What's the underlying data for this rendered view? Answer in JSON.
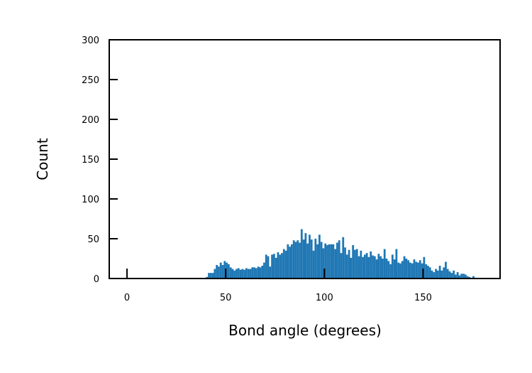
{
  "chart_data": {
    "type": "histogram",
    "xlabel": "Bond angle (degrees)",
    "ylabel": "Count",
    "xlim": [
      -9,
      189
    ],
    "ylim": [
      0,
      300
    ],
    "xticks": [
      0,
      50,
      100,
      150
    ],
    "yticks": [
      0,
      50,
      100,
      150,
      200,
      250,
      300
    ],
    "bin_width": 1,
    "bar_color": "#1f77b4",
    "grid": false,
    "bins": [
      [
        40,
        2
      ],
      [
        41,
        7
      ],
      [
        42,
        7
      ],
      [
        43,
        7
      ],
      [
        44,
        12
      ],
      [
        45,
        17
      ],
      [
        46,
        15
      ],
      [
        47,
        20
      ],
      [
        48,
        17
      ],
      [
        49,
        22
      ],
      [
        50,
        20
      ],
      [
        51,
        18
      ],
      [
        52,
        14
      ],
      [
        53,
        12
      ],
      [
        54,
        10
      ],
      [
        55,
        12
      ],
      [
        56,
        13
      ],
      [
        57,
        11
      ],
      [
        58,
        12
      ],
      [
        59,
        11
      ],
      [
        60,
        13
      ],
      [
        61,
        12
      ],
      [
        62,
        12
      ],
      [
        63,
        14
      ],
      [
        64,
        14
      ],
      [
        65,
        13
      ],
      [
        66,
        15
      ],
      [
        67,
        14
      ],
      [
        68,
        16
      ],
      [
        69,
        20
      ],
      [
        70,
        30
      ],
      [
        71,
        28
      ],
      [
        72,
        15
      ],
      [
        73,
        30
      ],
      [
        74,
        31
      ],
      [
        75,
        26
      ],
      [
        76,
        33
      ],
      [
        77,
        30
      ],
      [
        78,
        32
      ],
      [
        79,
        37
      ],
      [
        80,
        35
      ],
      [
        81,
        43
      ],
      [
        82,
        40
      ],
      [
        83,
        43
      ],
      [
        84,
        48
      ],
      [
        85,
        46
      ],
      [
        86,
        48
      ],
      [
        87,
        45
      ],
      [
        88,
        62
      ],
      [
        89,
        49
      ],
      [
        90,
        57
      ],
      [
        91,
        44
      ],
      [
        92,
        55
      ],
      [
        93,
        49
      ],
      [
        94,
        35
      ],
      [
        95,
        50
      ],
      [
        96,
        43
      ],
      [
        97,
        55
      ],
      [
        98,
        46
      ],
      [
        99,
        38
      ],
      [
        100,
        44
      ],
      [
        101,
        42
      ],
      [
        102,
        43
      ],
      [
        103,
        43
      ],
      [
        104,
        43
      ],
      [
        105,
        37
      ],
      [
        106,
        45
      ],
      [
        107,
        48
      ],
      [
        108,
        32
      ],
      [
        109,
        52
      ],
      [
        110,
        39
      ],
      [
        111,
        30
      ],
      [
        112,
        36
      ],
      [
        113,
        26
      ],
      [
        114,
        42
      ],
      [
        115,
        36
      ],
      [
        116,
        37
      ],
      [
        117,
        28
      ],
      [
        118,
        35
      ],
      [
        119,
        27
      ],
      [
        120,
        30
      ],
      [
        121,
        32
      ],
      [
        122,
        27
      ],
      [
        123,
        34
      ],
      [
        124,
        29
      ],
      [
        125,
        28
      ],
      [
        126,
        24
      ],
      [
        127,
        31
      ],
      [
        128,
        28
      ],
      [
        129,
        25
      ],
      [
        130,
        37
      ],
      [
        131,
        25
      ],
      [
        132,
        22
      ],
      [
        133,
        18
      ],
      [
        134,
        30
      ],
      [
        135,
        24
      ],
      [
        136,
        37
      ],
      [
        137,
        20
      ],
      [
        138,
        19
      ],
      [
        139,
        22
      ],
      [
        140,
        28
      ],
      [
        141,
        25
      ],
      [
        142,
        23
      ],
      [
        143,
        20
      ],
      [
        144,
        19
      ],
      [
        145,
        24
      ],
      [
        146,
        21
      ],
      [
        147,
        20
      ],
      [
        148,
        23
      ],
      [
        149,
        19
      ],
      [
        150,
        27
      ],
      [
        151,
        18
      ],
      [
        152,
        16
      ],
      [
        153,
        14
      ],
      [
        154,
        10
      ],
      [
        155,
        8
      ],
      [
        156,
        12
      ],
      [
        157,
        10
      ],
      [
        158,
        16
      ],
      [
        159,
        10
      ],
      [
        160,
        14
      ],
      [
        161,
        21
      ],
      [
        162,
        12
      ],
      [
        163,
        9
      ],
      [
        164,
        7
      ],
      [
        165,
        10
      ],
      [
        166,
        5
      ],
      [
        167,
        8
      ],
      [
        168,
        4
      ],
      [
        169,
        6
      ],
      [
        170,
        6
      ],
      [
        171,
        5
      ],
      [
        172,
        3
      ],
      [
        173,
        2
      ],
      [
        174,
        1
      ],
      [
        175,
        3
      ],
      [
        176,
        1
      ]
    ]
  }
}
